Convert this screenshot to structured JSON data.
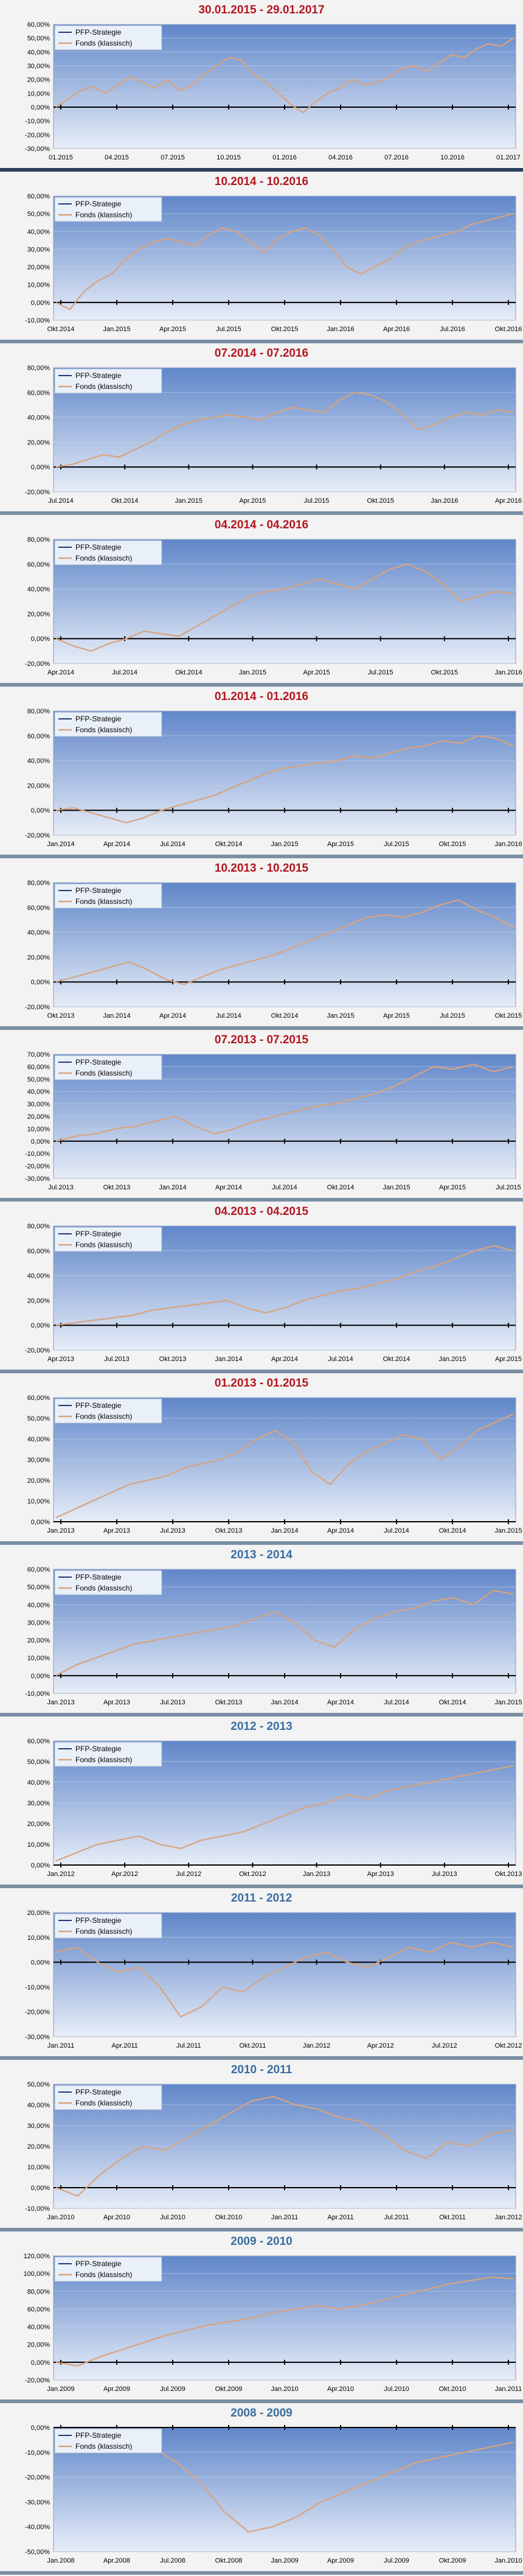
{
  "colors": {
    "strategy": "#1f3a73",
    "fund": "#d9a37e",
    "zero_line": "#000000",
    "plot_top": "#5f86c9",
    "plot_bottom": "#e7edf8"
  },
  "legend": {
    "strategy": "PFP-Strategie",
    "fund": "Fonds (klassisch)"
  },
  "chart_data": [
    {
      "type": "line",
      "title": "30.01.2015 - 29.01.2017",
      "title_color": "red",
      "yticks": [
        "60,00%",
        "50,00%",
        "40,00%",
        "30,00%",
        "20,00%",
        "10,00%",
        "0,00%",
        "-10,00%",
        "-20,00%",
        "-30,00%"
      ],
      "ylim": [
        -30,
        60
      ],
      "xticks": [
        "01.2015",
        "04.2015",
        "07.2015",
        "10.2015",
        "01.2016",
        "04.2016",
        "07.2016",
        "10.2016",
        "01.2017"
      ],
      "series": [
        {
          "name": "Fonds (klassisch)",
          "values": [
            0,
            6,
            12,
            15,
            10,
            16,
            22,
            18,
            14,
            20,
            12,
            16,
            24,
            30,
            36,
            34,
            24,
            18,
            10,
            2,
            -4,
            4,
            10,
            14,
            20,
            16,
            18,
            22,
            28,
            30,
            26,
            32,
            38,
            36,
            42,
            46,
            44,
            50
          ]
        }
      ]
    },
    {
      "type": "line",
      "title": "10.2014 - 10.2016",
      "title_color": "red",
      "yticks": [
        "60,00%",
        "50,00%",
        "40,00%",
        "30,00%",
        "20,00%",
        "10,00%",
        "0,00%",
        "-10,00%"
      ],
      "ylim": [
        -10,
        60
      ],
      "xticks": [
        "Okt.2014",
        "Jan.2015",
        "Apr.2015",
        "Jul.2015",
        "Okt.2015",
        "Jan.2016",
        "Apr.2016",
        "Jul.2016",
        "Okt.2016"
      ],
      "series": [
        {
          "name": "Fonds (klassisch)",
          "values": [
            0,
            -4,
            6,
            12,
            16,
            24,
            30,
            34,
            36,
            34,
            32,
            38,
            42,
            40,
            34,
            28,
            36,
            40,
            42,
            38,
            30,
            20,
            16,
            20,
            24,
            30,
            34,
            36,
            38,
            40,
            44,
            46,
            48,
            50
          ]
        }
      ]
    },
    {
      "type": "line",
      "title": "07.2014 - 07.2016",
      "title_color": "red",
      "yticks": [
        "80,00%",
        "60,00%",
        "40,00%",
        "20,00%",
        "0,00%",
        "-20,00%"
      ],
      "ylim": [
        -20,
        80
      ],
      "xticks": [
        "Jul.2014",
        "Okt.2014",
        "Jan.2015",
        "Apr.2015",
        "Jul.2015",
        "Okt.2015",
        "Jan.2016",
        "Apr.2016"
      ],
      "series": [
        {
          "name": "Fonds (klassisch)",
          "values": [
            0,
            2,
            6,
            10,
            8,
            14,
            20,
            28,
            34,
            38,
            40,
            42,
            40,
            38,
            44,
            48,
            46,
            44,
            54,
            60,
            58,
            52,
            42,
            30,
            34,
            40,
            44,
            42,
            46,
            44
          ]
        }
      ]
    },
    {
      "type": "line",
      "title": "04.2014 - 04.2016",
      "title_color": "red",
      "yticks": [
        "80,00%",
        "60,00%",
        "40,00%",
        "20,00%",
        "0,00%",
        "-20,00%"
      ],
      "ylim": [
        -20,
        80
      ],
      "xticks": [
        "Apr.2014",
        "Jul.2014",
        "Okt.2014",
        "Jan.2015",
        "Apr.2015",
        "Jul.2015",
        "Okt.2015",
        "Jan.2016"
      ],
      "series": [
        {
          "name": "Fonds (klassisch)",
          "values": [
            0,
            -6,
            -10,
            -4,
            0,
            6,
            4,
            2,
            10,
            18,
            26,
            34,
            38,
            40,
            44,
            48,
            44,
            40,
            48,
            56,
            60,
            54,
            44,
            30,
            34,
            38,
            36
          ]
        }
      ]
    },
    {
      "type": "line",
      "title": "01.2014 - 01.2016",
      "title_color": "red",
      "yticks": [
        "80,00%",
        "60,00%",
        "40,00%",
        "20,00%",
        "0,00%",
        "-20,00%"
      ],
      "ylim": [
        -20,
        80
      ],
      "xticks": [
        "Jan.2014",
        "Apr.2014",
        "Jul.2014",
        "Okt.2014",
        "Jan.2015",
        "Apr.2015",
        "Jul.2015",
        "Okt.2015",
        "Jan.2016"
      ],
      "series": [
        {
          "name": "Fonds (klassisch)",
          "values": [
            0,
            2,
            -2,
            -6,
            -10,
            -6,
            0,
            4,
            8,
            12,
            18,
            24,
            30,
            34,
            36,
            38,
            40,
            44,
            42,
            46,
            50,
            52,
            56,
            54,
            60,
            58,
            52
          ]
        }
      ]
    },
    {
      "type": "line",
      "title": "10.2013 - 10.2015",
      "title_color": "red",
      "yticks": [
        "80,00%",
        "60,00%",
        "40,00%",
        "20,00%",
        "0,00%",
        "-20,00%"
      ],
      "ylim": [
        -20,
        80
      ],
      "xticks": [
        "Okt.2013",
        "Jan.2014",
        "Apr.2014",
        "Jul.2014",
        "Okt.2014",
        "Jan.2015",
        "Apr.2015",
        "Jul.2015",
        "Okt.2015"
      ],
      "series": [
        {
          "name": "Fonds (klassisch)",
          "values": [
            0,
            4,
            8,
            12,
            16,
            10,
            2,
            -2,
            4,
            10,
            14,
            18,
            22,
            28,
            34,
            40,
            46,
            52,
            54,
            52,
            56,
            62,
            66,
            58,
            52,
            44
          ]
        }
      ]
    },
    {
      "type": "line",
      "title": "07.2013 - 07.2015",
      "title_color": "red",
      "yticks": [
        "70,00%",
        "60,00%",
        "50,00%",
        "40,00%",
        "30,00%",
        "20,00%",
        "10,00%",
        "0,00%",
        "-10,00%",
        "-20,00%",
        "-30,00%"
      ],
      "ylim": [
        -30,
        70
      ],
      "xticks": [
        "Jul.2013",
        "Okt.2013",
        "Jan.2014",
        "Apr.2014",
        "Jul.2014",
        "Okt.2014",
        "Jan.2015",
        "Apr.2015",
        "Jul.2015"
      ],
      "series": [
        {
          "name": "Fonds (klassisch)",
          "values": [
            0,
            4,
            6,
            10,
            12,
            16,
            20,
            12,
            6,
            10,
            16,
            20,
            24,
            28,
            30,
            34,
            38,
            44,
            52,
            60,
            58,
            62,
            56,
            60
          ]
        }
      ]
    },
    {
      "type": "line",
      "title": "04.2013 - 04.2015",
      "title_color": "red",
      "yticks": [
        "80,00%",
        "60,00%",
        "40,00%",
        "20,00%",
        "0,00%",
        "-20,00%"
      ],
      "ylim": [
        -20,
        80
      ],
      "xticks": [
        "Apr.2013",
        "Jul.2013",
        "Okt.2013",
        "Jan.2014",
        "Apr.2014",
        "Jul.2014",
        "Okt.2014",
        "Jan.2015",
        "Apr.2015"
      ],
      "series": [
        {
          "name": "Fonds (klassisch)",
          "values": [
            0,
            2,
            4,
            6,
            8,
            12,
            14,
            16,
            18,
            20,
            14,
            10,
            14,
            20,
            24,
            28,
            30,
            34,
            38,
            44,
            48,
            54,
            60,
            64,
            60
          ]
        }
      ]
    },
    {
      "type": "line",
      "title": "01.2013 - 01.2015",
      "title_color": "red",
      "yticks": [
        "60,00%",
        "50,00%",
        "40,00%",
        "30,00%",
        "20,00%",
        "10,00%",
        "0,00%"
      ],
      "ylim": [
        0,
        60
      ],
      "xticks": [
        "Jan.2013",
        "Apr.2013",
        "Jul.2013",
        "Okt.2013",
        "Jan.2014",
        "Apr.2014",
        "Jul.2014",
        "Okt.2014",
        "Jan.2015"
      ],
      "series": [
        {
          "name": "Fonds (klassisch)",
          "values": [
            2,
            6,
            10,
            14,
            18,
            20,
            22,
            26,
            28,
            30,
            34,
            40,
            44,
            38,
            24,
            18,
            28,
            34,
            38,
            42,
            40,
            30,
            36,
            44,
            48,
            52
          ]
        }
      ]
    },
    {
      "type": "line",
      "title": "2013 - 2014",
      "title_color": "blue",
      "yticks": [
        "60,00%",
        "50,00%",
        "40,00%",
        "30,00%",
        "20,00%",
        "10,00%",
        "0,00%",
        "-10,00%"
      ],
      "ylim": [
        -10,
        60
      ],
      "xticks": [
        "Jan.2013",
        "Apr.2013",
        "Jul.2013",
        "Okt.2013",
        "Jan.2014",
        "Apr.2014",
        "Jul.2014",
        "Okt.2014",
        "Jan.2015"
      ],
      "series": [
        {
          "name": "Fonds (klassisch)",
          "values": [
            0,
            6,
            10,
            14,
            18,
            20,
            22,
            24,
            26,
            28,
            32,
            36,
            30,
            20,
            16,
            26,
            32,
            36,
            38,
            42,
            44,
            40,
            48,
            46
          ]
        }
      ]
    },
    {
      "type": "line",
      "title": "2012 - 2013",
      "title_color": "blue",
      "yticks": [
        "60,00%",
        "50,00%",
        "40,00%",
        "30,00%",
        "20,00%",
        "10,00%",
        "0,00%"
      ],
      "ylim": [
        0,
        60
      ],
      "xticks": [
        "Jan.2012",
        "Apr.2012",
        "Jul.2012",
        "Okt.2012",
        "Jan.2013",
        "Apr.2013",
        "Jul.2013",
        "Okt.2013"
      ],
      "series": [
        {
          "name": "Fonds (klassisch)",
          "values": [
            2,
            6,
            10,
            12,
            14,
            10,
            8,
            12,
            14,
            16,
            20,
            24,
            28,
            30,
            34,
            32,
            36,
            38,
            40,
            42,
            44,
            46,
            48
          ]
        }
      ]
    },
    {
      "type": "line",
      "title": "2011 - 2012",
      "title_color": "blue",
      "yticks": [
        "20,00%",
        "10,00%",
        "0,00%",
        "-10,00%",
        "-20,00%",
        "-30,00%"
      ],
      "ylim": [
        -30,
        20
      ],
      "xticks": [
        "Jan.2011",
        "Apr.2011",
        "Jul.2011",
        "Okt.2011",
        "Jan.2012",
        "Apr.2012",
        "Jul.2012",
        "Okt.2012"
      ],
      "series": [
        {
          "name": "Fonds (klassisch)",
          "values": [
            4,
            6,
            0,
            -4,
            -2,
            -10,
            -22,
            -18,
            -10,
            -12,
            -6,
            -2,
            2,
            4,
            0,
            -2,
            2,
            6,
            4,
            8,
            6,
            8,
            6
          ]
        }
      ]
    },
    {
      "type": "line",
      "title": "2010 - 2011",
      "title_color": "blue",
      "yticks": [
        "50,00%",
        "40,00%",
        "30,00%",
        "20,00%",
        "10,00%",
        "0,00%",
        "-10,00%"
      ],
      "ylim": [
        -10,
        50
      ],
      "xticks": [
        "Jan.2010",
        "Apr.2010",
        "Jul.2010",
        "Okt.2010",
        "Jan.2011",
        "Apr.2011",
        "Jul.2011",
        "Okt.2011",
        "Jan.2012"
      ],
      "series": [
        {
          "name": "Fonds (klassisch)",
          "values": [
            0,
            -4,
            6,
            14,
            20,
            18,
            24,
            30,
            36,
            42,
            44,
            40,
            38,
            34,
            32,
            26,
            18,
            14,
            22,
            20,
            26,
            28
          ]
        }
      ]
    },
    {
      "type": "line",
      "title": "2009 - 2010",
      "title_color": "blue",
      "yticks": [
        "120,00%",
        "100,00%",
        "80,00%",
        "60,00%",
        "40,00%",
        "20,00%",
        "0,00%",
        "-20,00%"
      ],
      "ylim": [
        -20,
        120
      ],
      "xticks": [
        "Jan.2009",
        "Apr.2009",
        "Jul.2009",
        "Okt.2009",
        "Jan.2010",
        "Apr.2010",
        "Jul.2010",
        "Okt.2010",
        "Jan.2011"
      ],
      "series": [
        {
          "name": "Fonds (klassisch)",
          "values": [
            0,
            -4,
            6,
            14,
            22,
            30,
            36,
            42,
            46,
            50,
            56,
            60,
            64,
            60,
            64,
            70,
            76,
            82,
            88,
            92,
            96,
            94
          ]
        }
      ]
    },
    {
      "type": "line",
      "title": "2008 - 2009",
      "title_color": "blue",
      "yticks": [
        "0,00%",
        "-10,00%",
        "-20,00%",
        "-30,00%",
        "-40,00%",
        "-50,00%"
      ],
      "ylim": [
        -50,
        0
      ],
      "xticks": [
        "Jan.2008",
        "Apr.2008",
        "Jul.2008",
        "Okt.2008",
        "Jan.2009",
        "Apr.2009",
        "Jul.2009",
        "Okt.2009",
        "Jan.2010"
      ],
      "series": [
        {
          "name": "Fonds (klassisch)",
          "values": [
            -2,
            -6,
            -4,
            -2,
            -8,
            -14,
            -22,
            -34,
            -42,
            -40,
            -36,
            -30,
            -26,
            -22,
            -18,
            -14,
            -12,
            -10,
            -8,
            -6
          ]
        }
      ]
    }
  ]
}
